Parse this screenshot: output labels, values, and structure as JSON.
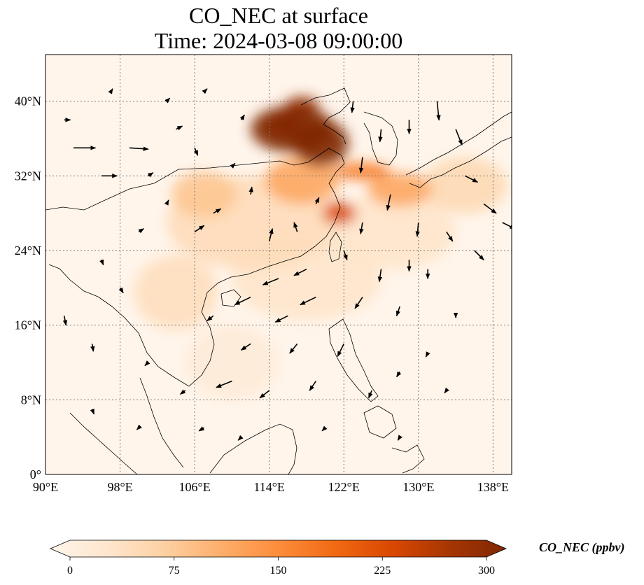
{
  "map": {
    "title_line_1": "CO_NEC at surface",
    "title_line_2": "Time: 2024-03-08 09:00:00",
    "lon_range": [
      90,
      140
    ],
    "lat_range": [
      0,
      45
    ],
    "lon_ticks": [
      {
        "value": 90,
        "label": "90°E"
      },
      {
        "value": 98,
        "label": "98°E"
      },
      {
        "value": 106,
        "label": "106°E"
      },
      {
        "value": 114,
        "label": "114°E"
      },
      {
        "value": 122,
        "label": "122°E"
      },
      {
        "value": 130,
        "label": "130°E"
      },
      {
        "value": 138,
        "label": "138°E"
      }
    ],
    "lat_ticks": [
      {
        "value": 0,
        "label": "0°"
      },
      {
        "value": 8,
        "label": "8°N"
      },
      {
        "value": 16,
        "label": "16°N"
      },
      {
        "value": 24,
        "label": "24°N"
      },
      {
        "value": 32,
        "label": "32°N"
      },
      {
        "value": 40,
        "label": "40°N"
      }
    ],
    "gridlines": true,
    "background_color": "#fff5eb",
    "colormap": [
      "#fff5eb",
      "#fee6ce",
      "#fdd0a2",
      "#fdae6b",
      "#fd8d3c",
      "#f16913",
      "#d94801",
      "#a63603",
      "#7f2704"
    ],
    "concentration_patches": [
      {
        "lon": 116.5,
        "lat": 37.0,
        "rlon": 4.5,
        "rlat": 2.5,
        "value": 300
      },
      {
        "lon": 119.5,
        "lat": 35.5,
        "rlon": 3.0,
        "rlat": 2.5,
        "value": 300
      },
      {
        "lon": 117.5,
        "lat": 39.5,
        "rlon": 1.8,
        "rlat": 1.0,
        "value": 280
      },
      {
        "lon": 115.5,
        "lat": 37.5,
        "rlon": 2.0,
        "rlat": 1.5,
        "value": 250
      },
      {
        "lon": 124.0,
        "lat": 32.5,
        "rlon": 3.0,
        "rlat": 0.9,
        "value": 170
      },
      {
        "lon": 121.5,
        "lat": 28.0,
        "rlon": 1.8,
        "rlat": 1.2,
        "value": 220
      },
      {
        "lon": 117.5,
        "lat": 31.5,
        "rlon": 4.0,
        "rlat": 2.5,
        "value": 120
      },
      {
        "lon": 128.0,
        "lat": 30.5,
        "rlon": 3.5,
        "rlat": 1.8,
        "value": 120
      },
      {
        "lon": 107.0,
        "lat": 30.0,
        "rlon": 3.5,
        "rlat": 2.5,
        "value": 85
      },
      {
        "lon": 112.0,
        "lat": 27.0,
        "rlon": 9.0,
        "rlat": 5.0,
        "value": 55
      },
      {
        "lon": 104.0,
        "lat": 19.5,
        "rlon": 4.5,
        "rlat": 4.0,
        "value": 50
      },
      {
        "lon": 118.0,
        "lat": 21.0,
        "rlon": 8.0,
        "rlat": 4.5,
        "value": 40
      },
      {
        "lon": 127.0,
        "lat": 26.0,
        "rlon": 7.0,
        "rlat": 4.0,
        "value": 40
      },
      {
        "lon": 135.0,
        "lat": 31.0,
        "rlon": 4.5,
        "rlat": 3.0,
        "value": 60
      },
      {
        "lon": 110.0,
        "lat": 12.0,
        "rlon": 5.0,
        "rlat": 4.0,
        "value": 25
      }
    ],
    "wind_vectors": [
      {
        "lon": 92,
        "lat": 38,
        "u": 1.0,
        "v": 0.0
      },
      {
        "lon": 93,
        "lat": 35,
        "u": 3.5,
        "v": 0.0
      },
      {
        "lon": 96,
        "lat": 32,
        "u": 2.5,
        "v": 0.0
      },
      {
        "lon": 99,
        "lat": 35,
        "u": 3.0,
        "v": -0.2
      },
      {
        "lon": 104,
        "lat": 37,
        "u": 1.0,
        "v": 0.5
      },
      {
        "lon": 106,
        "lat": 35,
        "u": 0.5,
        "v": -1.2
      },
      {
        "lon": 103,
        "lat": 29,
        "u": 0.3,
        "v": 0.6
      },
      {
        "lon": 100,
        "lat": 26,
        "u": 0.8,
        "v": 0.5
      },
      {
        "lon": 106,
        "lat": 26,
        "u": 1.5,
        "v": 1.0
      },
      {
        "lon": 108,
        "lat": 28,
        "u": 1.2,
        "v": 0.7
      },
      {
        "lon": 110,
        "lat": 33,
        "u": 0.5,
        "v": 0.5
      },
      {
        "lon": 112,
        "lat": 30,
        "u": 0.2,
        "v": 1.2
      },
      {
        "lon": 114,
        "lat": 25,
        "u": 0.5,
        "v": 2.0
      },
      {
        "lon": 117,
        "lat": 26,
        "u": -0.5,
        "v": 1.5
      },
      {
        "lon": 119,
        "lat": 29,
        "u": 0.5,
        "v": 1.0
      },
      {
        "lon": 115,
        "lat": 21,
        "u": -2.5,
        "v": -1.0
      },
      {
        "lon": 118,
        "lat": 22,
        "u": -2.0,
        "v": -1.0
      },
      {
        "lon": 112,
        "lat": 19,
        "u": -2.5,
        "v": -1.2
      },
      {
        "lon": 119,
        "lat": 19,
        "u": -2.5,
        "v": -1.2
      },
      {
        "lon": 116,
        "lat": 17,
        "u": -2.0,
        "v": -1.0
      },
      {
        "lon": 108,
        "lat": 17,
        "u": -1.0,
        "v": -0.8
      },
      {
        "lon": 112,
        "lat": 14,
        "u": -1.5,
        "v": -1.0
      },
      {
        "lon": 117,
        "lat": 14,
        "u": -1.2,
        "v": -1.5
      },
      {
        "lon": 110,
        "lat": 10,
        "u": -2.5,
        "v": -1.0
      },
      {
        "lon": 114,
        "lat": 9,
        "u": -1.5,
        "v": -1.2
      },
      {
        "lon": 119,
        "lat": 10,
        "u": -1.0,
        "v": -1.5
      },
      {
        "lon": 122,
        "lat": 14,
        "u": -1.0,
        "v": -2.0
      },
      {
        "lon": 124,
        "lat": 19,
        "u": -1.2,
        "v": -1.8
      },
      {
        "lon": 126,
        "lat": 22,
        "u": -0.3,
        "v": -2.0
      },
      {
        "lon": 128,
        "lat": 18,
        "u": -0.5,
        "v": -1.5
      },
      {
        "lon": 129,
        "lat": 23,
        "u": 0.0,
        "v": -1.8
      },
      {
        "lon": 130,
        "lat": 27,
        "u": -0.2,
        "v": -2.2
      },
      {
        "lon": 127,
        "lat": 30,
        "u": -0.5,
        "v": -2.5
      },
      {
        "lon": 124,
        "lat": 34,
        "u": -0.3,
        "v": -2.5
      },
      {
        "lon": 126,
        "lat": 37,
        "u": -0.2,
        "v": -2.0
      },
      {
        "lon": 123,
        "lat": 40,
        "u": -0.2,
        "v": -1.8
      },
      {
        "lon": 129,
        "lat": 38,
        "u": 0.0,
        "v": -2.2
      },
      {
        "lon": 132,
        "lat": 40,
        "u": 0.3,
        "v": -3.0
      },
      {
        "lon": 134,
        "lat": 37,
        "u": 1.0,
        "v": -2.5
      },
      {
        "lon": 135,
        "lat": 32,
        "u": 2.0,
        "v": -1.0
      },
      {
        "lon": 137,
        "lat": 29,
        "u": 2.0,
        "v": -1.5
      },
      {
        "lon": 139,
        "lat": 27,
        "u": 2.0,
        "v": -1.0
      },
      {
        "lon": 133,
        "lat": 26,
        "u": 1.0,
        "v": -1.5
      },
      {
        "lon": 136,
        "lat": 24,
        "u": 1.5,
        "v": -1.5
      },
      {
        "lon": 131,
        "lat": 22,
        "u": 0.0,
        "v": -1.5
      },
      {
        "lon": 134,
        "lat": 17,
        "u": 0.0,
        "v": -0.3
      },
      {
        "lon": 122,
        "lat": 24,
        "u": 0.5,
        "v": -1.5
      },
      {
        "lon": 124,
        "lat": 27,
        "u": -0.3,
        "v": -1.8
      },
      {
        "lon": 96,
        "lat": 23,
        "u": 0.3,
        "v": -0.8
      },
      {
        "lon": 98,
        "lat": 20,
        "u": 0.5,
        "v": -0.8
      },
      {
        "lon": 92,
        "lat": 17,
        "u": 0.3,
        "v": -1.5
      },
      {
        "lon": 95,
        "lat": 14,
        "u": 0.2,
        "v": -1.2
      },
      {
        "lon": 101,
        "lat": 12,
        "u": -0.5,
        "v": -0.5
      },
      {
        "lon": 105,
        "lat": 9,
        "u": -0.8,
        "v": -0.6
      },
      {
        "lon": 107,
        "lat": 5,
        "u": -0.8,
        "v": -0.5
      },
      {
        "lon": 111,
        "lat": 4,
        "u": -0.5,
        "v": -0.5
      },
      {
        "lon": 100,
        "lat": 5,
        "u": -0.3,
        "v": -0.3
      },
      {
        "lon": 95,
        "lat": 7,
        "u": 0.3,
        "v": -0.8
      },
      {
        "lon": 125,
        "lat": 9,
        "u": -0.5,
        "v": -1.2
      },
      {
        "lon": 128,
        "lat": 11,
        "u": -0.5,
        "v": -0.8
      },
      {
        "lon": 131,
        "lat": 13,
        "u": -0.3,
        "v": -0.6
      },
      {
        "lon": 133,
        "lat": 9,
        "u": -0.3,
        "v": -0.4
      },
      {
        "lon": 120,
        "lat": 5,
        "u": -0.5,
        "v": -0.5
      },
      {
        "lon": 128,
        "lat": 4,
        "u": -0.3,
        "v": -0.5
      },
      {
        "lon": 103,
        "lat": 40,
        "u": 0.5,
        "v": 0.5
      },
      {
        "lon": 97,
        "lat": 41,
        "u": 0.3,
        "v": 0.5
      },
      {
        "lon": 107,
        "lat": 41,
        "u": 0.5,
        "v": 0.5
      },
      {
        "lon": 111,
        "lat": 38,
        "u": 0.5,
        "v": 0.8
      },
      {
        "lon": 101,
        "lat": 32,
        "u": 0.8,
        "v": 0.5
      }
    ]
  },
  "colorbar": {
    "ticks": [
      {
        "value": 0,
        "label": "0"
      },
      {
        "value": 75,
        "label": "75"
      },
      {
        "value": 150,
        "label": "150"
      },
      {
        "value": 225,
        "label": "225"
      },
      {
        "value": 300,
        "label": "300"
      }
    ],
    "min": 0,
    "max": 300,
    "label": "CO_NEC (ppbv)"
  }
}
